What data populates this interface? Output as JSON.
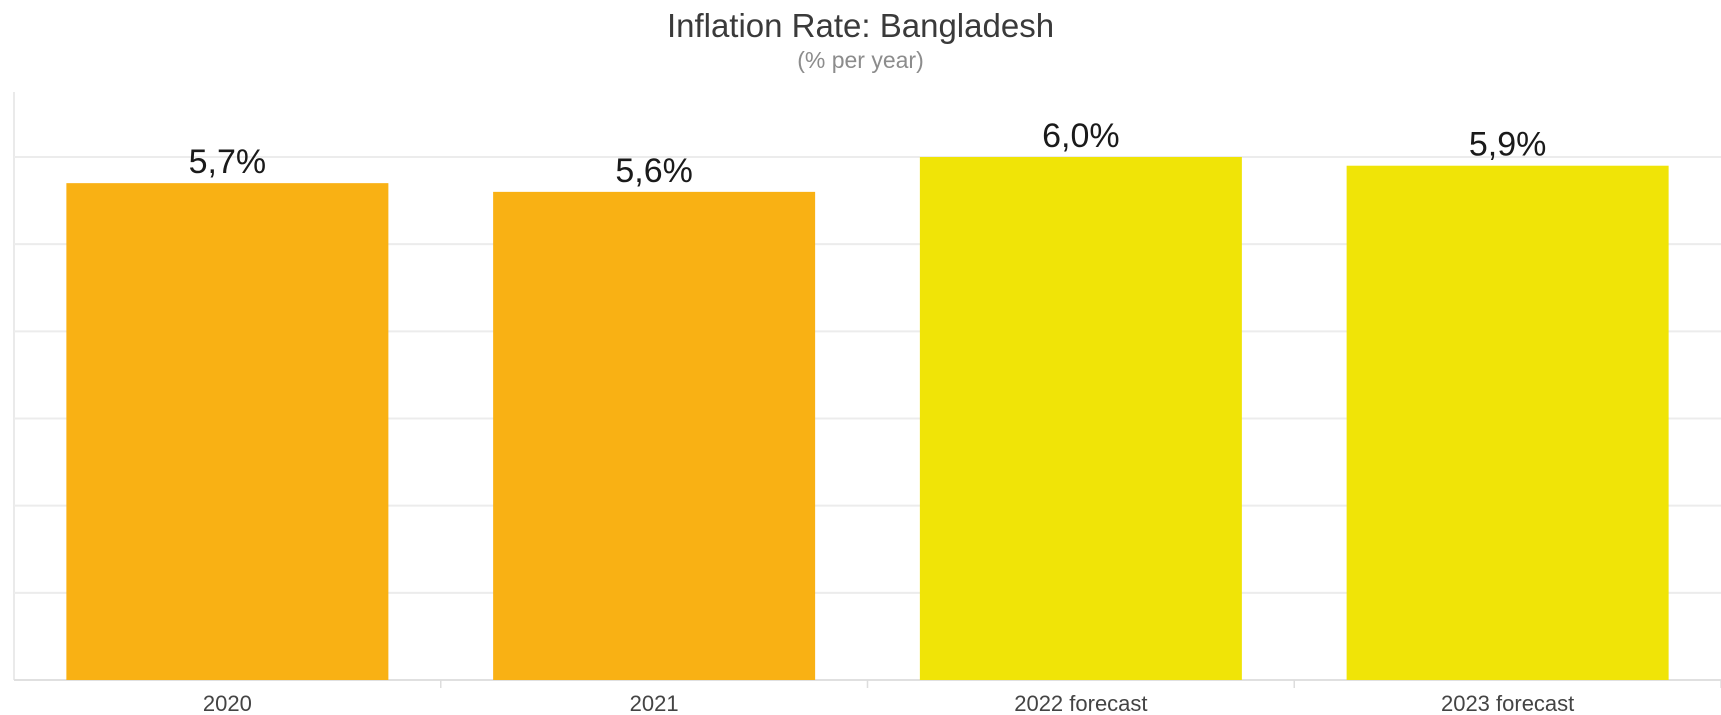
{
  "chart_data": {
    "type": "bar",
    "title": "Inflation Rate: Bangladesh",
    "subtitle": "(% per year)",
    "categories": [
      "2020",
      "2021",
      "2022 forecast",
      "2023 forecast"
    ],
    "values": [
      5.7,
      5.6,
      6.0,
      5.9
    ],
    "data_labels": [
      "5,7%",
      "5,6%",
      "6,0%",
      "5,9%"
    ],
    "colors": [
      "#F9B114",
      "#F9B114",
      "#F0E407",
      "#F0E407"
    ],
    "ylim": [
      0,
      6.0
    ],
    "grid": true,
    "legend": "none"
  }
}
